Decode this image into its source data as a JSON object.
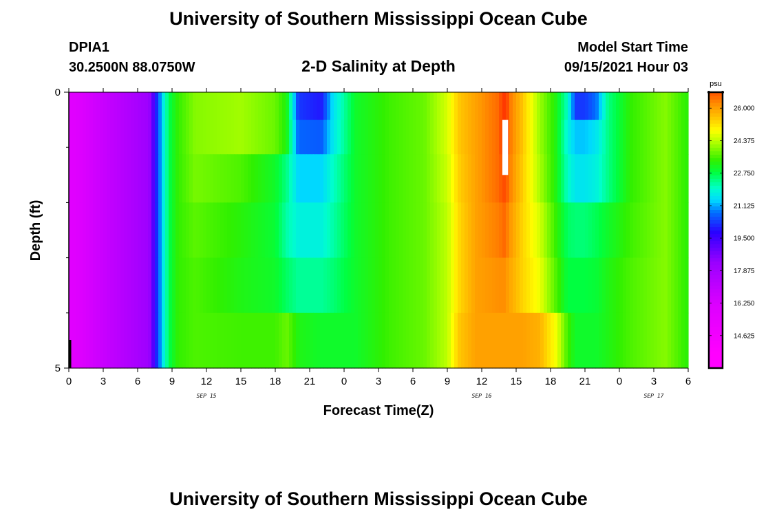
{
  "page": {
    "title": "University of Southern Mississippi Ocean Cube",
    "footer_title": "University of Southern Mississippi Ocean Cube",
    "station": "DPIA1",
    "location": "30.2500N  88.0750W",
    "plot_title": "2-D Salinity at Depth",
    "model_start_label": "Model Start Time",
    "model_start_value": "09/15/2021 Hour 03"
  },
  "chart_data": {
    "type": "heatmap",
    "title": "2-D Salinity at Depth",
    "xlabel": "Forecast Time(Z)",
    "ylabel": "Depth (ft)",
    "x_unit": "forecast hours from model start",
    "xlim": [
      0,
      54
    ],
    "ylim": [
      0,
      5
    ],
    "x_ticks": [
      {
        "hour": 0,
        "label": "0"
      },
      {
        "hour": 3,
        "label": "3"
      },
      {
        "hour": 6,
        "label": "6"
      },
      {
        "hour": 9,
        "label": "9"
      },
      {
        "hour": 12,
        "label": "12"
      },
      {
        "hour": 15,
        "label": "15"
      },
      {
        "hour": 18,
        "label": "18"
      },
      {
        "hour": 21,
        "label": "21"
      },
      {
        "hour": 24,
        "label": "0"
      },
      {
        "hour": 27,
        "label": "3"
      },
      {
        "hour": 30,
        "label": "6"
      },
      {
        "hour": 33,
        "label": "9"
      },
      {
        "hour": 36,
        "label": "12"
      },
      {
        "hour": 39,
        "label": "15"
      },
      {
        "hour": 42,
        "label": "18"
      },
      {
        "hour": 45,
        "label": "21"
      },
      {
        "hour": 48,
        "label": "0"
      },
      {
        "hour": 51,
        "label": "3"
      },
      {
        "hour": 54,
        "label": "6"
      }
    ],
    "date_labels": [
      {
        "hour": 12,
        "label": "SEP 15"
      },
      {
        "hour": 36,
        "label": "SEP 16"
      },
      {
        "hour": 51,
        "label": "SEP 17"
      }
    ],
    "y_ticks": [
      {
        "depth": 0,
        "label": "0"
      },
      {
        "depth": 5,
        "label": "5"
      }
    ],
    "y_minor_ticks": [
      1,
      2,
      3,
      4
    ],
    "depth_levels": [
      0.25,
      0.75,
      1.5,
      2.5,
      3.5,
      4.5
    ],
    "time_knots": [
      0,
      7,
      7.6,
      8.2,
      8.8,
      9.5,
      11,
      15,
      18,
      19,
      20,
      22,
      23,
      25,
      28,
      31,
      33,
      34,
      35.5,
      37.5,
      38,
      38.5,
      39.5,
      41,
      42.5,
      43.5,
      44.2,
      45,
      46,
      47,
      49,
      52,
      54
    ],
    "salinity": [
      [
        15.8,
        18.2,
        20.0,
        21.6,
        22.8,
        23.4,
        24.0,
        24.2,
        23.8,
        23.2,
        20.3,
        20.0,
        21.5,
        23.0,
        23.5,
        23.8,
        24.6,
        25.5,
        26.0,
        26.6,
        27.5,
        26.4,
        25.6,
        24.2,
        23.2,
        22.0,
        20.3,
        20.3,
        20.8,
        22.4,
        23.4,
        24.0,
        23.3
      ],
      [
        15.8,
        18.2,
        20.0,
        21.6,
        22.8,
        23.4,
        24.0,
        24.2,
        23.8,
        23.2,
        20.7,
        20.6,
        21.6,
        23.0,
        23.5,
        23.8,
        24.6,
        25.5,
        26.0,
        26.6,
        27.5,
        26.4,
        25.6,
        24.2,
        23.2,
        21.8,
        21.3,
        21.3,
        21.6,
        22.4,
        23.4,
        24.0,
        23.3
      ],
      [
        15.8,
        18.2,
        20.0,
        21.6,
        22.8,
        23.4,
        23.9,
        23.6,
        23.0,
        22.4,
        21.4,
        21.4,
        22.0,
        23.0,
        23.5,
        23.8,
        24.5,
        25.4,
        26.0,
        26.6,
        27.0,
        26.3,
        25.5,
        24.3,
        23.2,
        22.0,
        21.6,
        21.6,
        21.8,
        22.4,
        23.4,
        24.0,
        23.3
      ],
      [
        15.8,
        18.2,
        20.0,
        21.6,
        22.8,
        23.4,
        23.7,
        23.3,
        22.9,
        22.2,
        21.8,
        21.8,
        22.2,
        23.0,
        23.5,
        23.8,
        24.4,
        25.3,
        26.0,
        26.4,
        26.6,
        26.1,
        25.4,
        24.6,
        23.4,
        22.6,
        22.5,
        22.5,
        22.7,
        23.0,
        23.5,
        24.0,
        23.3
      ],
      [
        15.8,
        18.2,
        20.0,
        21.6,
        22.8,
        23.4,
        23.6,
        23.2,
        23.0,
        22.6,
        22.3,
        22.3,
        22.5,
        23.0,
        23.5,
        23.8,
        24.4,
        25.3,
        26.0,
        26.2,
        26.2,
        25.9,
        25.4,
        24.8,
        23.6,
        22.8,
        22.8,
        22.8,
        22.9,
        23.2,
        23.6,
        24.0,
        23.3
      ],
      [
        15.8,
        18.2,
        20.0,
        21.6,
        22.8,
        23.4,
        23.6,
        23.5,
        23.5,
        23.8,
        23.2,
        23.0,
        23.0,
        23.0,
        23.5,
        23.8,
        24.4,
        25.5,
        26.0,
        26.0,
        26.0,
        26.0,
        26.0,
        25.8,
        24.8,
        23.5,
        23.0,
        23.0,
        23.0,
        23.2,
        23.6,
        24.0,
        23.3
      ]
    ],
    "white_bar": {
      "hour_start": 37.8,
      "hour_end": 38.3,
      "depth_start": 0.5,
      "depth_end": 1.5
    },
    "colorbar": {
      "unit": "psu",
      "min": 13.0,
      "max": 26.8,
      "tick_values": [
        26.0,
        24.375,
        22.75,
        21.125,
        19.5,
        17.875,
        16.25,
        14.625
      ],
      "tick_labels": [
        "26.000",
        "24.375",
        "22.750",
        "21.125",
        "19.500",
        "17.875",
        "16.250",
        "14.625"
      ],
      "stops": [
        {
          "value": 13.8,
          "color": "#ff00ff"
        },
        {
          "value": 16.2,
          "color": "#dc00ff"
        },
        {
          "value": 18.3,
          "color": "#9a00ff"
        },
        {
          "value": 19.8,
          "color": "#2a00ff"
        },
        {
          "value": 20.8,
          "color": "#0070ff"
        },
        {
          "value": 21.4,
          "color": "#00d8ff"
        },
        {
          "value": 22.0,
          "color": "#00ffcc"
        },
        {
          "value": 22.8,
          "color": "#00ff40"
        },
        {
          "value": 23.4,
          "color": "#30f000"
        },
        {
          "value": 24.3,
          "color": "#b0ff00"
        },
        {
          "value": 24.9,
          "color": "#ffff00"
        },
        {
          "value": 25.6,
          "color": "#ffc000"
        },
        {
          "value": 26.1,
          "color": "#ff9900"
        },
        {
          "value": 26.8,
          "color": "#ff5500"
        },
        {
          "value": 27.6,
          "color": "#ff3000"
        }
      ]
    }
  }
}
